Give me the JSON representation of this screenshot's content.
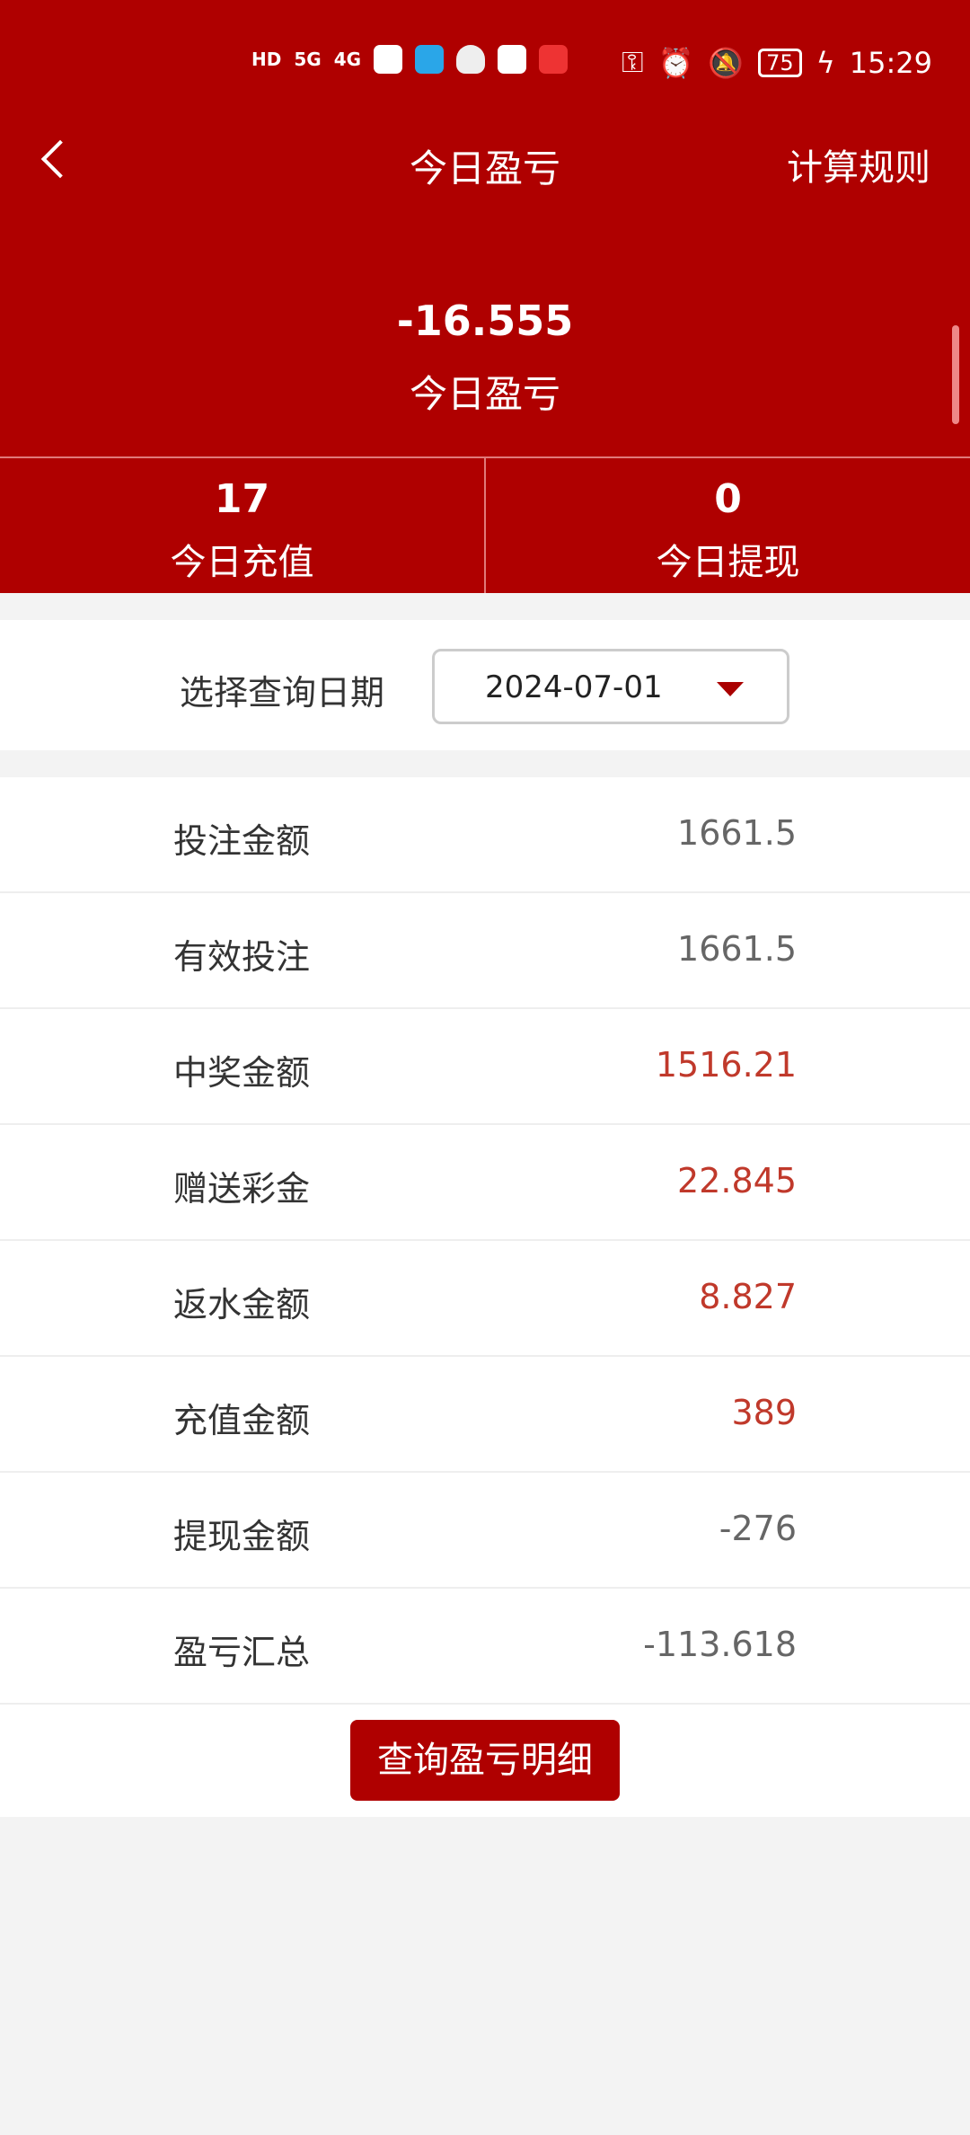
{
  "status_bar": {
    "time": "15:29",
    "battery": "75",
    "network1": "5G",
    "network2": "4G"
  },
  "nav": {
    "title": "今日盈亏",
    "rules_label": "计算规则"
  },
  "summary": {
    "value": "-16.555",
    "label": "今日盈亏"
  },
  "stats": [
    {
      "value": "17",
      "label": "今日充值"
    },
    {
      "value": "0",
      "label": "今日提现"
    }
  ],
  "date_filter": {
    "label": "选择查询日期",
    "value": "2024-07-01"
  },
  "rows": [
    {
      "label": "投注金额",
      "value": "1661.5",
      "highlight": false
    },
    {
      "label": "有效投注",
      "value": "1661.5",
      "highlight": false
    },
    {
      "label": "中奖金额",
      "value": "1516.21",
      "highlight": true
    },
    {
      "label": "赠送彩金",
      "value": "22.845",
      "highlight": true
    },
    {
      "label": "返水金额",
      "value": "8.827",
      "highlight": true
    },
    {
      "label": "充值金额",
      "value": "389",
      "highlight": true
    },
    {
      "label": "提现金额",
      "value": "-276",
      "highlight": false
    },
    {
      "label": "盈亏汇总",
      "value": "-113.618",
      "highlight": false
    }
  ],
  "detail_button": "查询盈亏明细",
  "colors": {
    "brand": "#af0000",
    "highlight": "#c0392b"
  }
}
